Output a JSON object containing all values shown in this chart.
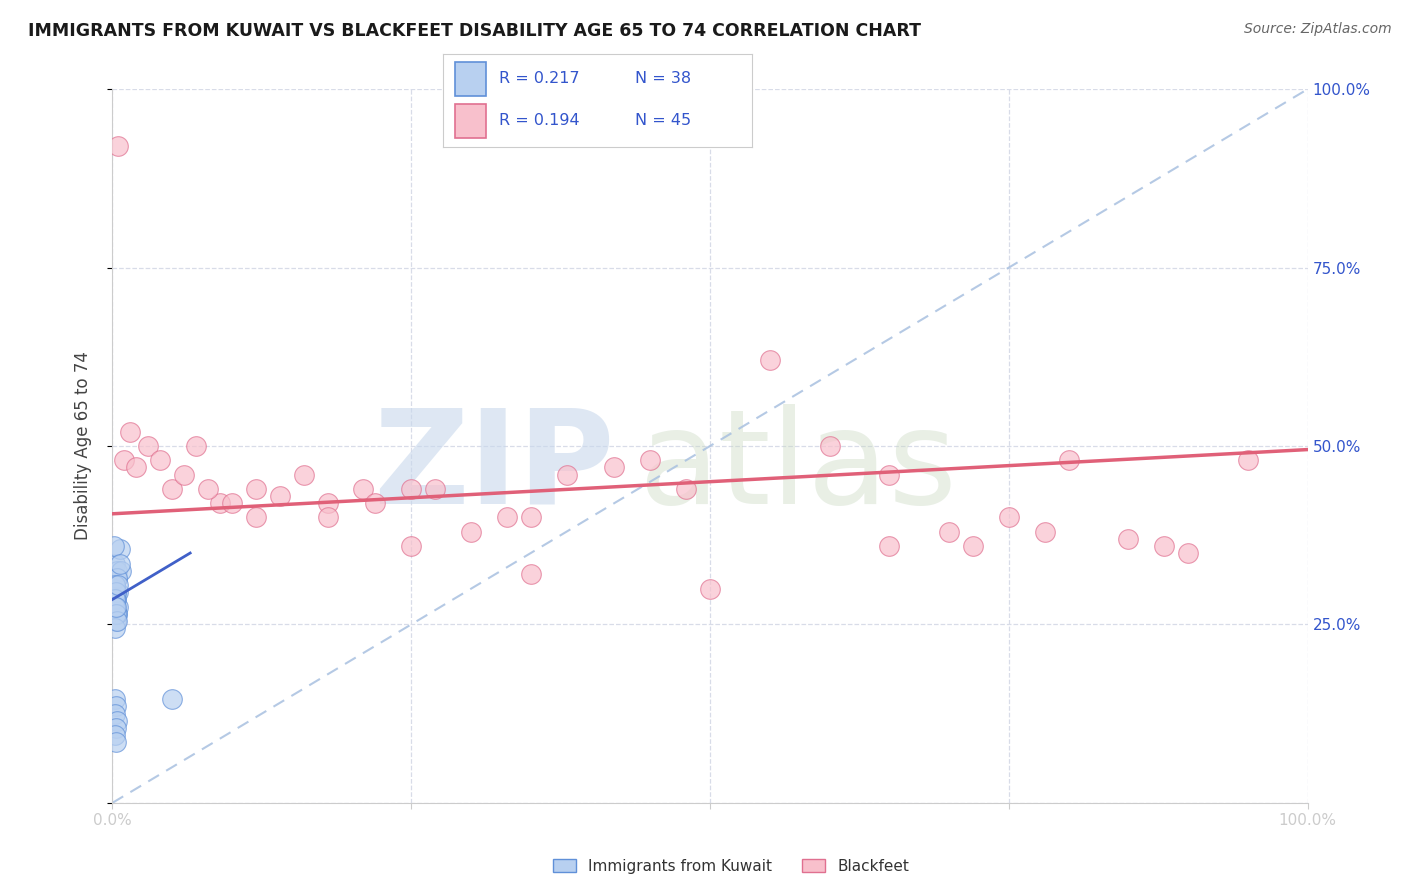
{
  "title": "IMMIGRANTS FROM KUWAIT VS BLACKFEET DISABILITY AGE 65 TO 74 CORRELATION CHART",
  "source": "Source: ZipAtlas.com",
  "ylabel": "Disability Age 65 to 74",
  "xlim": [
    0.0,
    1.0
  ],
  "ylim": [
    0.0,
    1.0
  ],
  "xticks": [
    0.0,
    0.25,
    0.5,
    0.75,
    1.0
  ],
  "yticks": [
    0.0,
    0.25,
    0.5,
    0.75,
    1.0
  ],
  "xticklabels": [
    "0.0%",
    "",
    "",
    "",
    "100.0%"
  ],
  "yticklabels_right": [
    "",
    "25.0%",
    "50.0%",
    "75.0%",
    "100.0%"
  ],
  "legend_r1": "R = 0.217",
  "legend_n1": "N = 38",
  "legend_r2": "R = 0.194",
  "legend_n2": "N = 45",
  "color_kuwait_fill": "#b8d0f0",
  "color_kuwait_edge": "#6090d8",
  "color_blackfeet_fill": "#f8c0cc",
  "color_blackfeet_edge": "#e07090",
  "color_trend_kuwait": "#4060c8",
  "color_trend_blackfeet": "#e06078",
  "color_diagonal": "#a8c0e0",
  "color_grid": "#d8dce8",
  "color_r_values": "#3355cc",
  "color_axis_labels": "#3355cc",
  "background_color": "#ffffff",
  "kuwait_x": [
    0.002,
    0.003,
    0.004,
    0.002,
    0.003,
    0.005,
    0.006,
    0.004,
    0.003,
    0.002,
    0.007,
    0.005,
    0.004,
    0.003,
    0.002,
    0.004,
    0.003,
    0.002,
    0.001,
    0.002,
    0.003,
    0.002,
    0.004,
    0.005,
    0.002,
    0.003,
    0.002,
    0.004,
    0.006,
    0.003,
    0.002,
    0.05,
    0.003,
    0.002,
    0.004,
    0.003,
    0.002,
    0.003
  ],
  "kuwait_y": [
    0.335,
    0.315,
    0.325,
    0.305,
    0.285,
    0.295,
    0.355,
    0.315,
    0.295,
    0.305,
    0.325,
    0.275,
    0.315,
    0.285,
    0.305,
    0.265,
    0.255,
    0.285,
    0.36,
    0.275,
    0.295,
    0.285,
    0.265,
    0.305,
    0.275,
    0.265,
    0.245,
    0.255,
    0.335,
    0.275,
    0.145,
    0.145,
    0.135,
    0.125,
    0.115,
    0.105,
    0.095,
    0.085
  ],
  "blackfeet_x": [
    0.005,
    0.01,
    0.015,
    0.02,
    0.03,
    0.04,
    0.05,
    0.06,
    0.07,
    0.09,
    0.1,
    0.12,
    0.14,
    0.16,
    0.18,
    0.21,
    0.22,
    0.25,
    0.27,
    0.3,
    0.33,
    0.38,
    0.42,
    0.48,
    0.55,
    0.65,
    0.7,
    0.72,
    0.75,
    0.78,
    0.85,
    0.88,
    0.9,
    0.95,
    0.12,
    0.08,
    0.18,
    0.25,
    0.35,
    0.5,
    0.65,
    0.8,
    0.35,
    0.45,
    0.6
  ],
  "blackfeet_y": [
    0.92,
    0.48,
    0.52,
    0.47,
    0.5,
    0.48,
    0.44,
    0.46,
    0.5,
    0.42,
    0.42,
    0.44,
    0.43,
    0.46,
    0.42,
    0.44,
    0.42,
    0.44,
    0.44,
    0.38,
    0.4,
    0.46,
    0.47,
    0.44,
    0.62,
    0.46,
    0.38,
    0.36,
    0.4,
    0.38,
    0.37,
    0.36,
    0.35,
    0.48,
    0.4,
    0.44,
    0.4,
    0.36,
    0.32,
    0.3,
    0.36,
    0.48,
    0.4,
    0.48,
    0.5
  ],
  "blackfeet_trend_start_x": 0.0,
  "blackfeet_trend_end_x": 1.0,
  "blackfeet_trend_start_y": 0.405,
  "blackfeet_trend_end_y": 0.495,
  "kuwait_trend_start_x": 0.0,
  "kuwait_trend_end_x": 0.065,
  "kuwait_trend_start_y": 0.285,
  "kuwait_trend_end_y": 0.35
}
